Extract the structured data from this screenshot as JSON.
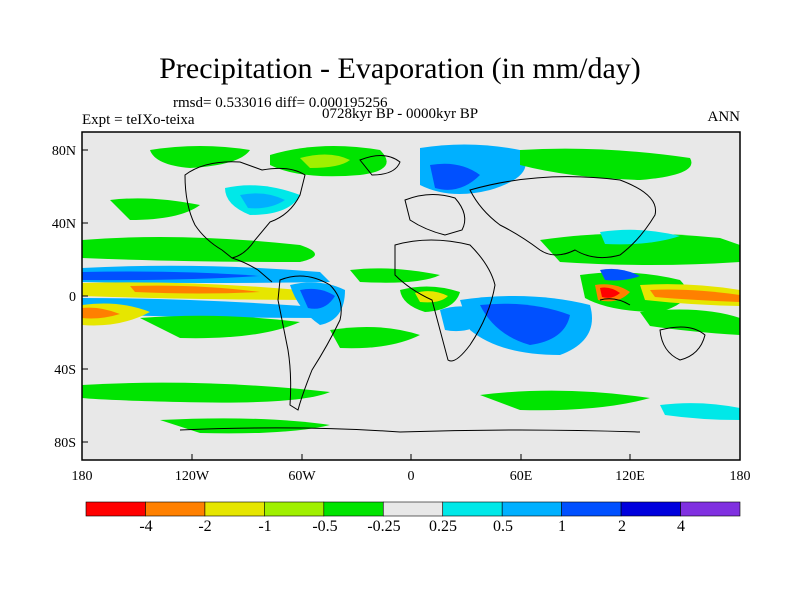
{
  "title": "Precipitation - Evaporation (in mm/day)",
  "stats_line": "rmsd= 0.533016 diff= 0.000195256",
  "period": "0728kyr BP - 0000kyr BP",
  "experiment": "Expt = teIXo-teixa",
  "season": "ANN",
  "x_ticks": [
    "180",
    "120W",
    "60W",
    "0",
    "60E",
    "120E",
    "180"
  ],
  "y_ticks": [
    "80N",
    "40N",
    "0",
    "40S",
    "80S"
  ],
  "colorbar": {
    "colors": [
      "#ff0000",
      "#ff8000",
      "#e6e600",
      "#a0f000",
      "#00e400",
      "#e8e8e8",
      "#00e8e8",
      "#00b0ff",
      "#0050ff",
      "#0000dd",
      "#8030e0"
    ],
    "labels": [
      "-4",
      "-2",
      "-1",
      "-0.5",
      "-0.25",
      "0.25",
      "0.5",
      "1",
      "2",
      "4"
    ]
  }
}
